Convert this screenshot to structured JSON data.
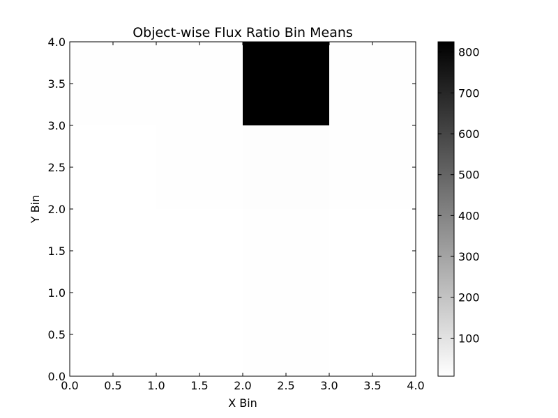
{
  "chart_data": {
    "type": "heatmap",
    "title": "Object-wise Flux Ratio Bin Means",
    "xlabel": "X Bin",
    "ylabel": "Y Bin",
    "xlim": [
      0.0,
      4.0
    ],
    "ylim": [
      0.0,
      4.0
    ],
    "x_ticks": [
      "0.0",
      "0.5",
      "1.0",
      "1.5",
      "2.0",
      "2.5",
      "3.0",
      "3.5",
      "4.0"
    ],
    "y_ticks": [
      "0.0",
      "0.5",
      "1.0",
      "1.5",
      "2.0",
      "2.5",
      "3.0",
      "3.5",
      "4.0"
    ],
    "x_edges": [
      0,
      1,
      2,
      3,
      4
    ],
    "y_edges": [
      0,
      1,
      2,
      3,
      4
    ],
    "values": [
      [
        8,
        7,
        9,
        8
      ],
      [
        7,
        8,
        10,
        8
      ],
      [
        8,
        9,
        12,
        9
      ],
      [
        9,
        10,
        825,
        10
      ]
    ],
    "colorbar": {
      "cmap": "gray_r",
      "vmin": 7,
      "vmax": 825,
      "ticks": [
        100,
        200,
        300,
        400,
        500,
        600,
        700,
        800
      ],
      "tick_labels": [
        "100",
        "200",
        "300",
        "400",
        "500",
        "600",
        "700",
        "800"
      ]
    },
    "grid": false
  }
}
